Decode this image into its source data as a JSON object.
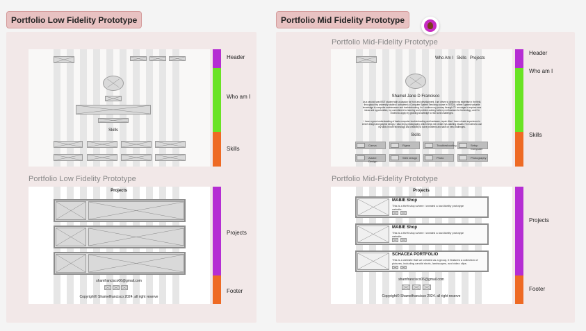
{
  "sections": {
    "low": "Portfolio Low Fidelity Prototype",
    "mid": "Portfolio Mid Fidelity Prototype"
  },
  "frames": {
    "low_top_label": "",
    "low_bottom_label": "Portfolio Low Fidelity Prototype",
    "mid_top_label": "Portfolio Mid-Fidelity Prototype",
    "mid_bottom_label": "Portfolio Mid-Fidelity Prototype"
  },
  "annotations": {
    "header": "Header",
    "who_am_i_low": "Who am I",
    "who_am_i_mid": "Who am I",
    "skills": "Skills",
    "projects": "Projects",
    "footer": "Footer"
  },
  "low_fi": {
    "skills_heading": "Skills",
    "projects_heading": "Projects",
    "email": "shamfrancisco06@gmail.com",
    "copyright": "Copyright© Shamelfrancisco 2024. all right reserve"
  },
  "mid_fi": {
    "nav": "Who Am I   Skills   Projects",
    "name": "Shamel Jane D Francisco",
    "bio1": "As a second year BSIT student with a passion for front-end development, I am driven to deepen my expertise in the field, throughout my university studies I completed a Computer System Servicing course in TESDA, where I gained valuable knowledge in computer maintenance and troubleshooting. As I continue my journey through IT I am eager to explore new ideas and opportunities, my commitment to learning and problem-solving fuels my enthusiasm for technology, and I'm excited to apply my growing knowledge to real world challenges.",
    "bio2": "I have a good understanding of basic computer troubleshooting and hardware, repair. Also I have a basic experience in UI/UX design and graphic design, I also enjoy photography, which helps me create eye-catching visuals. I'm excited to use my skills in both technology and creativity to solve problems and take on new challenges.",
    "skills_heading": "Skills",
    "skills": [
      "Canva",
      "Figma",
      "Troubleshooting",
      "Setup Computer",
      "Adobe Design",
      "Web design",
      "Photo",
      "Photography"
    ],
    "projects_heading": "Projects",
    "projects": [
      {
        "title": "MABIE Shop",
        "desc": "This is a thrift shop where I created a low-fidelity prototype website."
      },
      {
        "title": "MABIE Shop",
        "desc": "This is a thrift shop where I created a low-fidelity prototype website."
      },
      {
        "title": "SCHACEA PORTFOLIO",
        "desc": "This is a website that we created as a group, it features a collection of pictures, including candid shots, landscapes, and video clips."
      }
    ],
    "email": "shamfrancisco06@gmail.com",
    "copyright": "Copyright© Shamelfrancisco 2024. all right reserve"
  },
  "colors": {
    "header": "#b52ed3",
    "who_am_i": "#6ae324",
    "skills": "#ee6a24",
    "projects": "#b52ed3",
    "footer": "#ee6a24"
  }
}
